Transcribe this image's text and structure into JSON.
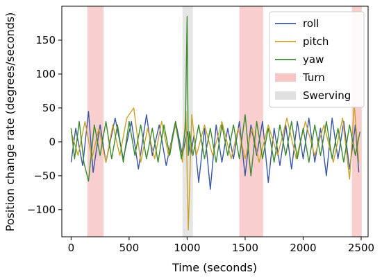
{
  "chart_data": {
    "type": "line",
    "xlabel": "Time (seconds)",
    "ylabel": "Position change rate (degrees/seconds)",
    "xlim": [
      -80,
      2560
    ],
    "ylim": [
      -140,
      200
    ],
    "xticks": [
      0,
      500,
      1000,
      1500,
      2000,
      2500
    ],
    "yticks": [
      -100,
      -50,
      0,
      50,
      100,
      150
    ],
    "grid": false,
    "legend_position": "top-right",
    "series": [
      {
        "name": "roll",
        "color": "#3b55a4",
        "x": [
          0,
          40,
          100,
          150,
          190,
          250,
          300,
          380,
          450,
          520,
          580,
          650,
          700,
          760,
          820,
          900,
          960,
          1000,
          1030,
          1060,
          1100,
          1150,
          1200,
          1250,
          1300,
          1350,
          1400,
          1450,
          1500,
          1550,
          1600,
          1650,
          1700,
          1750,
          1800,
          1850,
          1900,
          1950,
          2000,
          2050,
          2100,
          2150,
          2200,
          2250,
          2300,
          2350,
          2400,
          2450,
          2480
        ],
        "y": [
          -30,
          20,
          -35,
          45,
          -45,
          25,
          -30,
          35,
          -25,
          30,
          -40,
          40,
          -20,
          25,
          -35,
          30,
          -20,
          15,
          -20,
          10,
          -60,
          20,
          -70,
          25,
          -30,
          20,
          -25,
          30,
          -50,
          25,
          -20,
          30,
          -60,
          20,
          -35,
          25,
          -40,
          30,
          -25,
          35,
          -30,
          20,
          -50,
          35,
          -25,
          30,
          -40,
          25,
          -45
        ]
      },
      {
        "name": "pitch",
        "color": "#c9a227",
        "x": [
          0,
          60,
          120,
          180,
          240,
          300,
          360,
          420,
          480,
          540,
          600,
          660,
          720,
          780,
          840,
          900,
          960,
          990,
          1010,
          1040,
          1080,
          1150,
          1220,
          1300,
          1380,
          1440,
          1500,
          1560,
          1620,
          1700,
          1780,
          1860,
          1940,
          2020,
          2100,
          2180,
          2260,
          2340,
          2400,
          2440,
          2480
        ],
        "y": [
          15,
          -20,
          30,
          -25,
          20,
          -30,
          25,
          -20,
          35,
          50,
          -30,
          20,
          -25,
          30,
          -20,
          25,
          -30,
          45,
          -130,
          40,
          -20,
          25,
          -20,
          30,
          -25,
          20,
          -25,
          20,
          -30,
          25,
          -20,
          35,
          -25,
          30,
          -20,
          25,
          -30,
          35,
          -55,
          55,
          -30
        ]
      },
      {
        "name": "yaw",
        "color": "#3a8a2a",
        "x": [
          0,
          30,
          70,
          110,
          150,
          200,
          250,
          300,
          350,
          400,
          450,
          500,
          550,
          600,
          650,
          700,
          750,
          800,
          850,
          900,
          950,
          985,
          1000,
          1010,
          1020,
          1050,
          1100,
          1150,
          1200,
          1250,
          1300,
          1350,
          1400,
          1450,
          1500,
          1550,
          1600,
          1650,
          1700,
          1750,
          1800,
          1850,
          1900,
          1950,
          2000,
          2050,
          2100,
          2150,
          2200,
          2250,
          2300,
          2350,
          2400,
          2450,
          2490
        ],
        "y": [
          20,
          -25,
          30,
          -30,
          -58,
          25,
          -20,
          30,
          -25,
          25,
          -30,
          30,
          -20,
          25,
          -25,
          20,
          -30,
          25,
          -20,
          30,
          -25,
          20,
          185,
          -20,
          15,
          -20,
          25,
          -25,
          20,
          -30,
          25,
          -20,
          25,
          -25,
          40,
          -50,
          30,
          -25,
          20,
          -30,
          25,
          -20,
          30,
          -25,
          20,
          -30,
          25,
          -20,
          30,
          -25,
          20,
          -30,
          25,
          -20,
          15
        ]
      }
    ],
    "shaded_regions": [
      {
        "name": "Turn",
        "color": "#f4a6a6",
        "ranges": [
          [
            140,
            280
          ],
          [
            1450,
            1655
          ],
          [
            2420,
            2505
          ]
        ]
      },
      {
        "name": "Swerving",
        "color": "#cfcfcf",
        "ranges": [
          [
            960,
            1050
          ]
        ]
      }
    ]
  }
}
